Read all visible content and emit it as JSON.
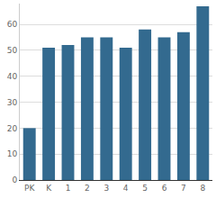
{
  "chart_data": {
    "type": "bar",
    "categories": [
      "PK",
      "K",
      "1",
      "2",
      "3",
      "4",
      "5",
      "6",
      "7",
      "8"
    ],
    "values": [
      20,
      51,
      52,
      55,
      55,
      51,
      58,
      55,
      57,
      67
    ],
    "color": "#336a8f",
    "ylim": [
      0,
      68
    ],
    "yticks": [
      0,
      10,
      20,
      30,
      40,
      50,
      60
    ],
    "grid": true
  }
}
